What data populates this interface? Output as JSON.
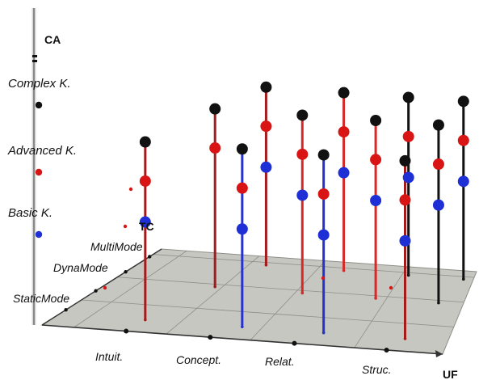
{
  "chart_data": {
    "type": "scatter",
    "projection": "3d",
    "vertical_axis": {
      "title": "CA",
      "levels": [
        "Basic K.",
        "Advanced K.",
        "Complex K."
      ]
    },
    "depth_axis": {
      "title": "TC",
      "levels": [
        "StaticMode",
        "DynaMode",
        "MultiMode"
      ]
    },
    "horizontal_axis": {
      "title": "UF",
      "levels": [
        "Intuit.",
        "Concept.",
        "Relat.",
        "Struc."
      ]
    },
    "level_colors": {
      "Basic K.": "#1f2fd6",
      "Advanced K.": "#d81414",
      "Complex K.": "#111111"
    },
    "stem_colors": [
      "#a41b1b",
      "#d42a2a",
      "#2632cc",
      "#111111"
    ],
    "plane_color": "#bdbdb6",
    "grid": true,
    "columns": [
      {
        "uf": "Intuit.",
        "tc": "StaticMode",
        "stem": "#a41b1b",
        "levels": [
          "Basic K.",
          "Advanced K.",
          "Complex K."
        ]
      },
      {
        "uf": "Intuit.",
        "tc": "DynaMode",
        "stem": "#a41b1b",
        "levels": [
          "Advanced K.",
          "Complex K."
        ]
      },
      {
        "uf": "Intuit.",
        "tc": "MultiMode",
        "stem": "#a41b1b",
        "levels": [
          "Basic K.",
          "Advanced K.",
          "Complex K."
        ]
      },
      {
        "uf": "Concept.",
        "tc": "StaticMode",
        "stem": "#2632cc",
        "levels": [
          "Basic K.",
          "Advanced K.",
          "Complex K."
        ]
      },
      {
        "uf": "Concept.",
        "tc": "DynaMode",
        "stem": "#d42a2a",
        "levels": [
          "Basic K.",
          "Advanced K.",
          "Complex K."
        ]
      },
      {
        "uf": "Concept.",
        "tc": "MultiMode",
        "stem": "#d42a2a",
        "levels": [
          "Basic K.",
          "Advanced K.",
          "Complex K."
        ]
      },
      {
        "uf": "Relat.",
        "tc": "StaticMode",
        "stem": "#2632cc",
        "levels": [
          "Basic K.",
          "Advanced K.",
          "Complex K."
        ]
      },
      {
        "uf": "Relat.",
        "tc": "DynaMode",
        "stem": "#d42a2a",
        "levels": [
          "Basic K.",
          "Advanced K.",
          "Complex K."
        ]
      },
      {
        "uf": "Relat.",
        "tc": "MultiMode",
        "stem": "#111111",
        "levels": [
          "Basic K.",
          "Advanced K.",
          "Complex K."
        ]
      },
      {
        "uf": "Struc.",
        "tc": "StaticMode",
        "stem": "#a41b1b",
        "levels": [
          "Basic K.",
          "Advanced K.",
          "Complex K."
        ]
      },
      {
        "uf": "Struc.",
        "tc": "DynaMode",
        "stem": "#111111",
        "levels": [
          "Basic K.",
          "Advanced K.",
          "Complex K."
        ]
      },
      {
        "uf": "Struc.",
        "tc": "MultiMode",
        "stem": "#111111",
        "levels": [
          "Basic K.",
          "Advanced K.",
          "Complex K."
        ]
      }
    ]
  }
}
